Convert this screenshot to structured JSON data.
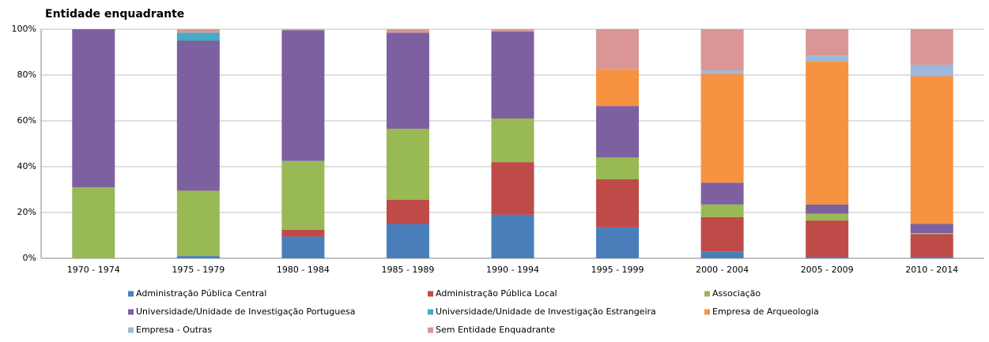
{
  "chart_data": {
    "type": "stacked_bar",
    "title": "Entidade enquadrante",
    "categories": [
      "1970 - 1974",
      "1975 - 1979",
      "1980 - 1984",
      "1985 - 1989",
      "1990 - 1994",
      "1995 - 1999",
      "2000 - 2004",
      "2005 - 2009",
      "2010 - 2014"
    ],
    "series": [
      {
        "name": "Administração Pública Central",
        "color": "#4a7ebb",
        "values": [
          0,
          1,
          9.5,
          15,
          19,
          13.5,
          3,
          0.5,
          0.5
        ]
      },
      {
        "name": "Administração Pública Local",
        "color": "#be4b48",
        "values": [
          0,
          0,
          3,
          10.5,
          23,
          21,
          15,
          16,
          10
        ]
      },
      {
        "name": "Associação",
        "color": "#98b954",
        "values": [
          31,
          28.5,
          30,
          31,
          19,
          9.5,
          5.5,
          3,
          0.5
        ]
      },
      {
        "name": "Universidade/Unidade de Investigação Portuguesa",
        "color": "#7d60a0",
        "values": [
          69,
          65.5,
          57,
          42,
          38,
          22.5,
          9.5,
          4,
          4
        ]
      },
      {
        "name": "Universidade/Unidade de Investigação  Estrangeira",
        "color": "#46aac5",
        "values": [
          0,
          3.5,
          0,
          0,
          0,
          0,
          0,
          0,
          0
        ]
      },
      {
        "name": "Empresa de Arqueologia",
        "color": "#f69240",
        "values": [
          0,
          0,
          0,
          0,
          0,
          16,
          47.5,
          62.5,
          64.5
        ]
      },
      {
        "name": "Empresa - Outras",
        "color": "#9cb9dc",
        "values": [
          0,
          0,
          0,
          0,
          0,
          0,
          1.5,
          2.5,
          5
        ]
      },
      {
        "name": "Sem Entidade Enquadrante",
        "color": "#d99694",
        "values": [
          0,
          1.5,
          0.5,
          1.5,
          1,
          17.5,
          18,
          11.5,
          15.5
        ]
      }
    ],
    "ylim": [
      0,
      100
    ],
    "yticks": [
      {
        "value": 0,
        "label": "0%"
      },
      {
        "value": 20,
        "label": "20%"
      },
      {
        "value": 40,
        "label": "40%"
      },
      {
        "value": 60,
        "label": "60%"
      },
      {
        "value": 80,
        "label": "80%"
      },
      {
        "value": 100,
        "label": "100%"
      }
    ],
    "grid": true
  }
}
